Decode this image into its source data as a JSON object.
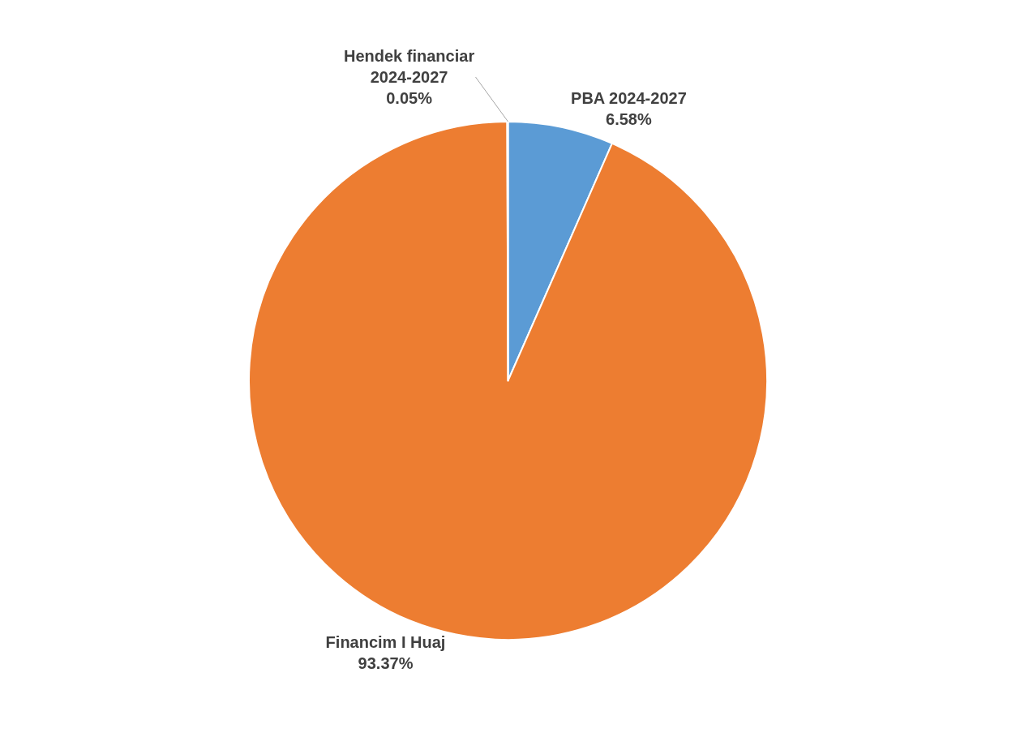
{
  "chart_data": {
    "type": "pie",
    "categories": [
      "PBA 2024-2027",
      "Financim I Huaj",
      "Hendek financiar 2024-2027"
    ],
    "values": [
      6.58,
      93.37,
      0.05
    ],
    "value_labels": [
      "6.58%",
      "93.37%",
      "0.05%"
    ],
    "colors": [
      "#5b9bd5",
      "#ed7d31",
      "#a5a5a5"
    ],
    "legend": false
  }
}
